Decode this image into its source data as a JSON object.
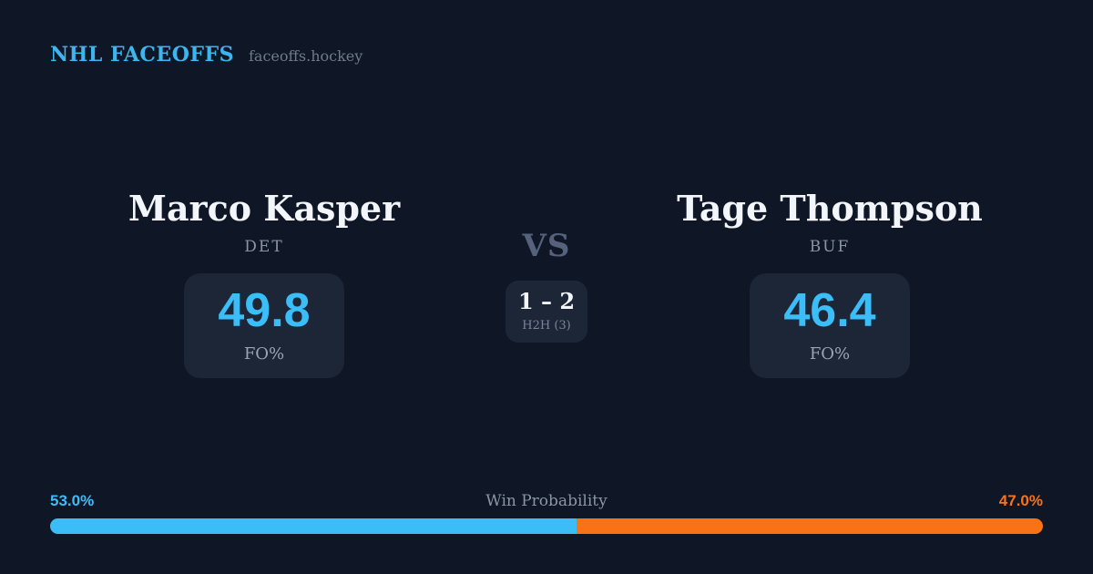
{
  "header": {
    "title": "NHL FACEOFFS",
    "site": "faceoffs.hockey"
  },
  "matchup": {
    "left": {
      "name": "Marco Kasper",
      "team": "DET",
      "stat_value": "49.8",
      "stat_label": "FO%"
    },
    "right": {
      "name": "Tage Thompson",
      "team": "BUF",
      "stat_value": "46.4",
      "stat_label": "FO%"
    },
    "vs_label": "VS",
    "h2h": {
      "score": "1 – 2",
      "label": "H2H (3)"
    }
  },
  "win_probability": {
    "label": "Win Probability",
    "left_pct": 53.0,
    "right_pct": 47.0,
    "left_pct_label": "53.0%",
    "right_pct_label": "47.0%"
  },
  "colors": {
    "background": "#0f1726",
    "card": "#1c2637",
    "accent_blue": "#3bbdf8",
    "accent_orange": "#f97316",
    "brand_blue": "#3db6ef"
  }
}
